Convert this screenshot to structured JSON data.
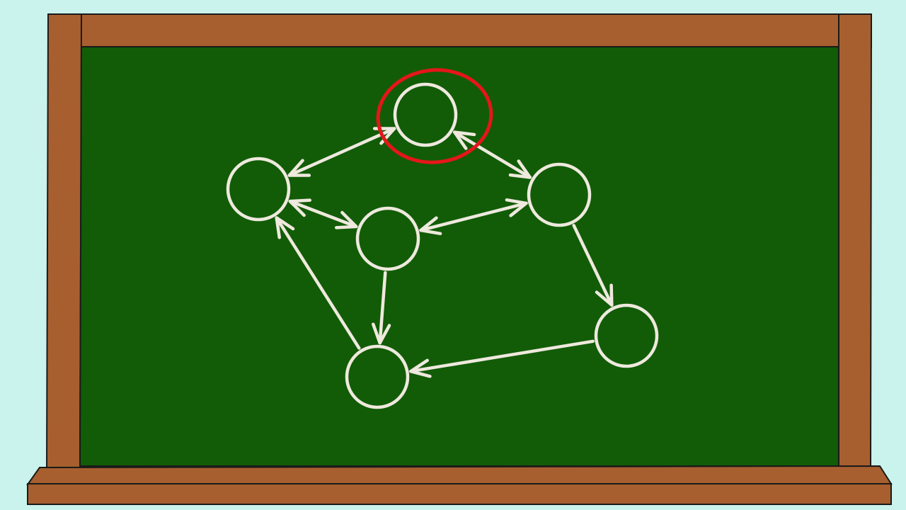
{
  "colors": {
    "background": "#c9f3ec",
    "frame": "#a85f2f",
    "board": "#125c07",
    "chalk": "#efe9de",
    "highlight": "#e5161a",
    "outline": "#1a1a1a"
  },
  "graph": {
    "directed": true,
    "highlighted_node": "top",
    "nodes": [
      {
        "id": "top",
        "highlighted": true
      },
      {
        "id": "left"
      },
      {
        "id": "center"
      },
      {
        "id": "right"
      },
      {
        "id": "far-right"
      },
      {
        "id": "bottom"
      }
    ],
    "edges": [
      {
        "id": "top-left",
        "from": "top",
        "to": "left",
        "bidirectional": true
      },
      {
        "id": "top-right",
        "from": "top",
        "to": "right",
        "bidirectional": true
      },
      {
        "id": "left-center",
        "from": "left",
        "to": "center",
        "bidirectional": true
      },
      {
        "id": "center-right",
        "from": "center",
        "to": "right",
        "bidirectional": true
      },
      {
        "id": "right-far-right",
        "from": "right",
        "to": "far-right",
        "bidirectional": false
      },
      {
        "id": "center-bottom",
        "from": "center",
        "to": "bottom",
        "bidirectional": false
      },
      {
        "id": "far-right-bottom",
        "from": "far-right",
        "to": "bottom",
        "bidirectional": false
      },
      {
        "id": "bottom-left",
        "from": "bottom",
        "to": "left",
        "bidirectional": false
      }
    ]
  }
}
